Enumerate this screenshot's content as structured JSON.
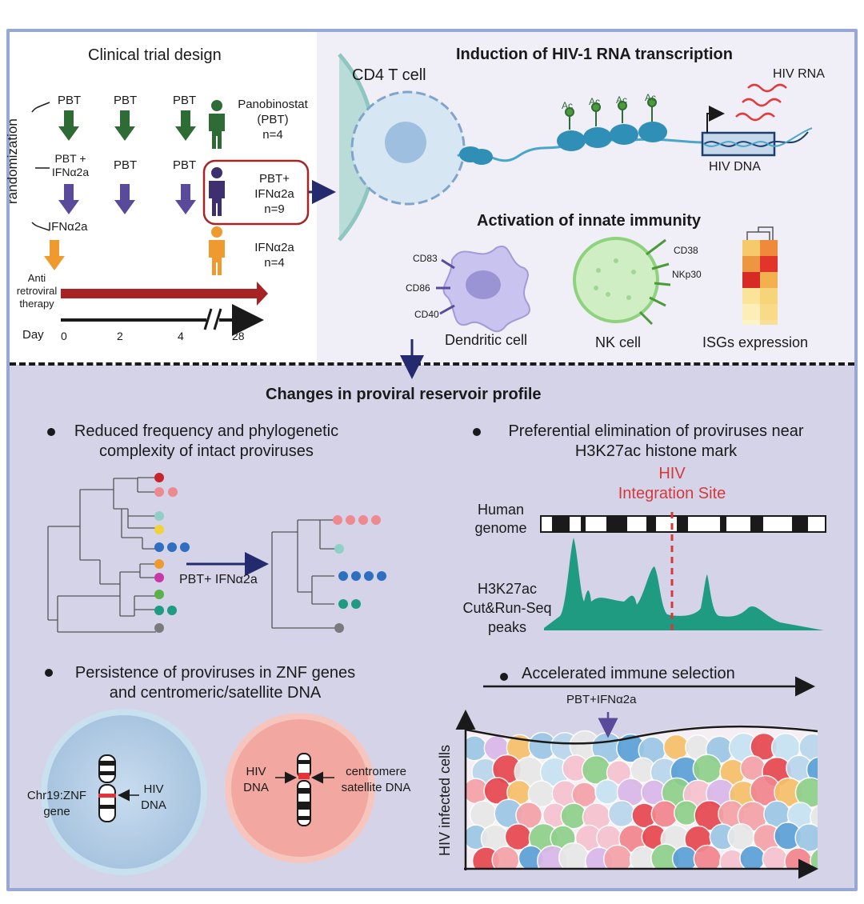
{
  "clinical": {
    "title": "Clinical trial design",
    "randomization": "randomization",
    "row1": [
      "PBT",
      "PBT",
      "PBT"
    ],
    "row2_first": [
      "PBT +",
      "IFNα2a"
    ],
    "row2": [
      "PBT",
      "PBT"
    ],
    "row3": "IFNα2a",
    "group_pbt": [
      "Panobinostat",
      "(PBT)",
      "n=4"
    ],
    "group_combo": [
      "PBT+",
      "IFNα2a",
      "n=9"
    ],
    "group_ifn": [
      "IFNα2a",
      "n=4"
    ],
    "art": [
      "Anti",
      "retroviral",
      "therapy"
    ],
    "day_label": "Day",
    "days": [
      "0",
      "2",
      "4",
      "28"
    ]
  },
  "induction": {
    "title": "Induction of HIV-1 RNA transcription",
    "cell_label": "CD4 T cell",
    "ac": [
      "Ac",
      "Ac",
      "Ac",
      "Ac"
    ],
    "hiv_rna": "HIV RNA",
    "hiv_dna": "HIV DNA"
  },
  "innate": {
    "title": "Activation of innate immunity",
    "dc_markers": [
      "CD83",
      "CD86",
      "CD40"
    ],
    "dc_label": "Dendritic cell",
    "nk_markers": [
      "CD38",
      "NKp30"
    ],
    "nk_label": "NK cell",
    "isg_label": "ISGs expression"
  },
  "changes": {
    "title": "Changes in proviral reservoir profile",
    "bullet1": [
      "Reduced frequency and phylogenetic",
      "complexity of intact proviruses"
    ],
    "treatment": "PBT+ IFNα2a",
    "bullet2": [
      "Preferential elimination of proviruses near",
      "H3K27ac histone mark"
    ],
    "integration": [
      "HIV",
      "Integration Site"
    ],
    "human_genome": [
      "Human",
      "genome"
    ],
    "peaks": [
      "H3K27ac",
      "Cut&Run-Seq",
      "peaks"
    ],
    "bullet3": [
      "Persistence of proviruses in ZNF genes",
      "and centromeric/satellite DNA"
    ],
    "chr19": [
      "Chr19:ZNF",
      "gene"
    ],
    "hiv_dna_a": [
      "HIV",
      "DNA"
    ],
    "hiv_dna_b": [
      "HIV",
      "DNA"
    ],
    "centromere": [
      "centromere",
      "satellite DNA"
    ],
    "bullet4": "Accelerated immune selection",
    "selection_treatment": "PBT+IFNα2a",
    "y_axis": "HIV infected cells"
  },
  "colors": {
    "frame": "#97a7d6",
    "dark_green": "#2f6b35",
    "purple": "#5a4a9a",
    "orange": "#ef9a2e",
    "dark_red": "#a82424",
    "navy": "#242a6e",
    "teal": "#1f9b82",
    "red_dashed": "#d43a3a"
  }
}
